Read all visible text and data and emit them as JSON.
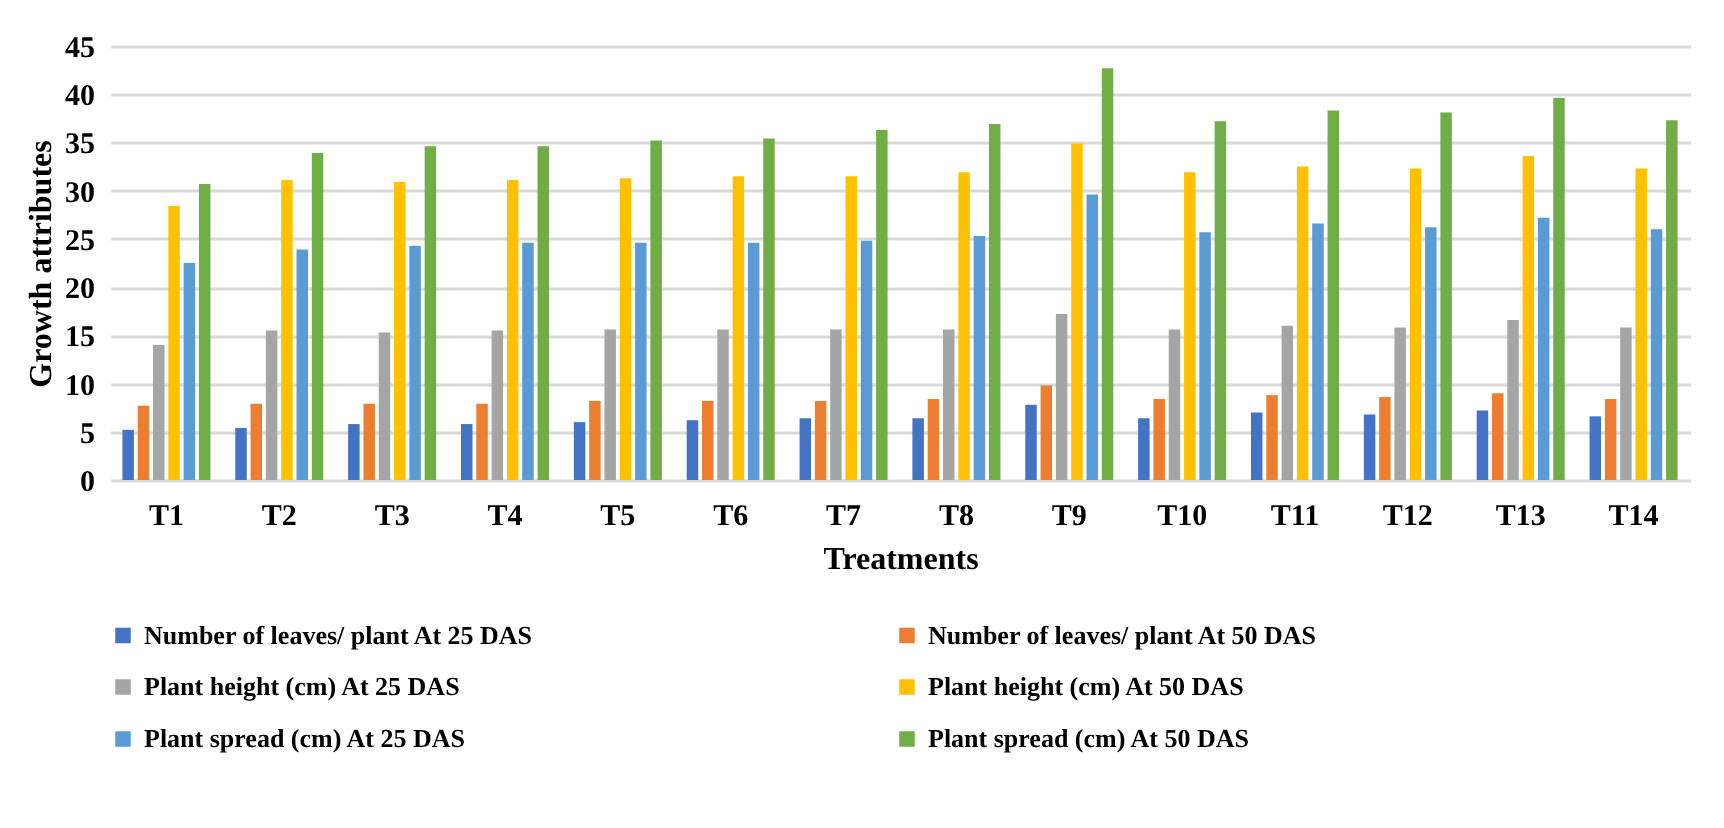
{
  "chart_data": {
    "type": "bar",
    "xlabel": "Treatments",
    "ylabel": "Growth attributes",
    "categories": [
      "T1",
      "T2",
      "T3",
      "T4",
      "T5",
      "T6",
      "T7",
      "T8",
      "T9",
      "T10",
      "T11",
      "T12",
      "T13",
      "T14"
    ],
    "series": [
      {
        "name": "Number of leaves/ plant At 25 DAS",
        "color": "#4472c4",
        "values": [
          5.2,
          5.4,
          5.8,
          5.8,
          6.0,
          6.2,
          6.4,
          6.4,
          7.8,
          6.4,
          7.0,
          6.8,
          7.2,
          6.6
        ]
      },
      {
        "name": "Number of leaves/ plant At 50 DAS",
        "color": "#ed7d31",
        "values": [
          7.7,
          7.9,
          7.9,
          7.9,
          8.2,
          8.2,
          8.2,
          8.4,
          9.8,
          8.4,
          8.8,
          8.6,
          9.0,
          8.4
        ]
      },
      {
        "name": "Plant height (cm) At 25 DAS",
        "color": "#a5a5a5",
        "values": [
          14.0,
          15.5,
          15.3,
          15.5,
          15.6,
          15.6,
          15.6,
          15.6,
          17.2,
          15.6,
          16.0,
          15.8,
          16.6,
          15.8
        ]
      },
      {
        "name": "Plant height (cm) At 50 DAS",
        "color": "#ffc000",
        "values": [
          28.4,
          31.1,
          30.9,
          31.1,
          31.3,
          31.5,
          31.5,
          31.9,
          34.9,
          31.9,
          32.5,
          32.3,
          33.6,
          32.3
        ]
      },
      {
        "name": "Plant spread (cm) At 25 DAS",
        "color": "#5b9bd5",
        "values": [
          22.5,
          23.9,
          24.3,
          24.6,
          24.6,
          24.6,
          24.8,
          25.3,
          29.6,
          25.7,
          26.6,
          26.2,
          27.2,
          26.0
        ]
      },
      {
        "name": "Plant spread (cm) At 50 DAS",
        "color": "#70ad47",
        "values": [
          30.7,
          33.9,
          34.6,
          34.6,
          35.2,
          35.4,
          36.3,
          36.9,
          42.7,
          37.2,
          38.3,
          38.1,
          39.6,
          37.3
        ]
      }
    ],
    "ylim": [
      0,
      45
    ],
    "yticks": [
      0,
      5,
      10,
      15,
      20,
      25,
      30,
      35,
      40,
      45
    ],
    "grid": "y",
    "legend": "bottom"
  }
}
